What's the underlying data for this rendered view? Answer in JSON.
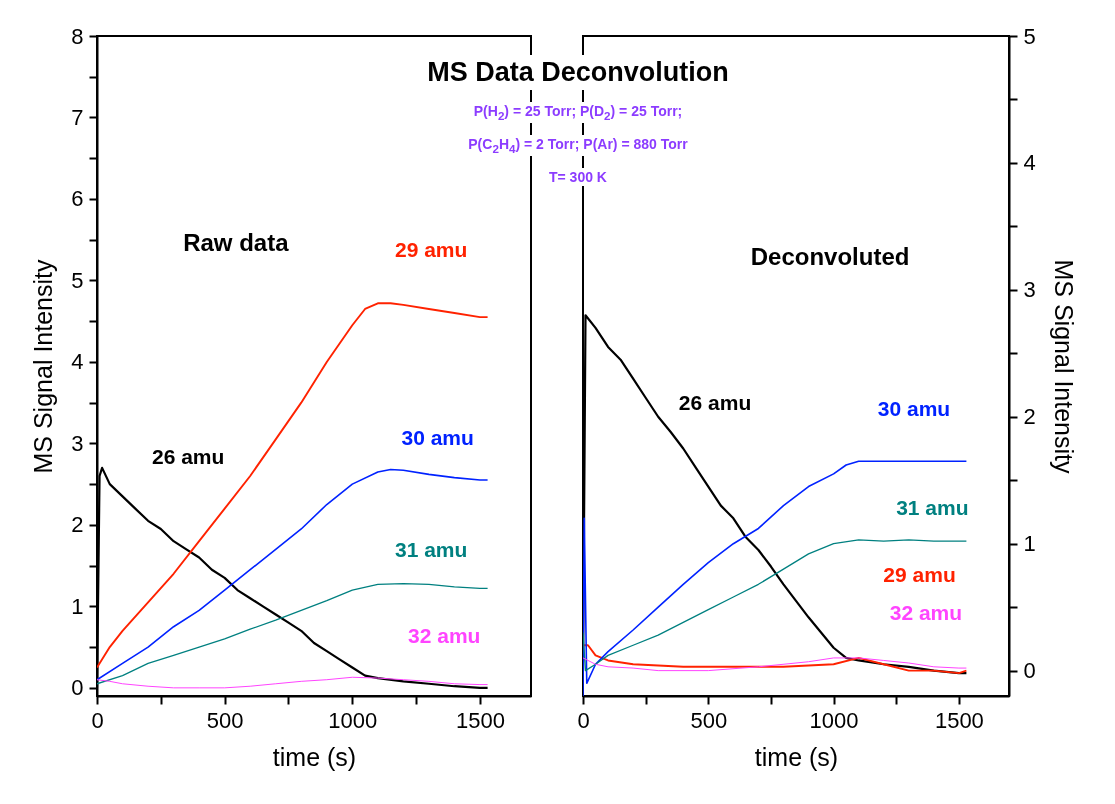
{
  "chart_data": [
    {
      "type": "line",
      "title": "MS Data Deconvolution",
      "xlabel": "time (s)",
      "ylabel": "MS Signal Intensity",
      "annotations": [
        "P(H$_{2}$) =  25 Torr; P(D$_{2}$) =  25 Torr;",
        "P(C$_{2}$H$_{4}$) =  2 Torr; P(Ar) =  880 Torr",
        "T= 300 K",
        "Raw data"
      ],
      "xlim": [
        0,
        1700
      ],
      "ylim": [
        -0.1,
        8
      ],
      "xticks": [
        0,
        {
          "value": 250,
          "label": null
        },
        500,
        {
          "value": 750,
          "label": null
        },
        1000,
        {
          "value": 1250,
          "label": null
        },
        1500
      ],
      "yticks": [
        0,
        {
          "value": 0.5,
          "label": null
        },
        1,
        {
          "value": 1.5,
          "label": null
        },
        2,
        {
          "value": 2.5,
          "label": null
        },
        3,
        {
          "value": 3.5,
          "label": null
        },
        4,
        {
          "value": 4.5,
          "label": null
        },
        5,
        {
          "value": 5.5,
          "label": null
        },
        6,
        {
          "value": 6.5,
          "label": null
        },
        7,
        {
          "value": 7.5,
          "label": null
        },
        8
      ],
      "series": [
        {
          "name": "26 amu",
          "color": "#000000",
          "x": [
            0,
            10,
            20,
            50,
            100,
            150,
            200,
            250,
            300,
            350,
            400,
            450,
            500,
            550,
            600,
            650,
            700,
            750,
            800,
            850,
            900,
            950,
            1000,
            1050,
            1100,
            1200,
            1300,
            1400,
            1500,
            1530
          ],
          "values": [
            0,
            2.6,
            2.7,
            2.5,
            2.35,
            2.2,
            2.05,
            1.95,
            1.8,
            1.7,
            1.6,
            1.45,
            1.35,
            1.2,
            1.1,
            1.0,
            0.9,
            0.8,
            0.7,
            0.55,
            0.45,
            0.35,
            0.25,
            0.15,
            0.12,
            0.08,
            0.05,
            0.02,
            0.0,
            0.0
          ]
        },
        {
          "name": "29 amu",
          "color": "#ff2200",
          "x": [
            0,
            50,
            100,
            200,
            300,
            400,
            500,
            600,
            700,
            800,
            900,
            1000,
            1050,
            1100,
            1150,
            1200,
            1300,
            1400,
            1500,
            1530
          ],
          "values": [
            0.25,
            0.5,
            0.7,
            1.05,
            1.4,
            1.8,
            2.2,
            2.6,
            3.05,
            3.5,
            4.0,
            4.45,
            4.65,
            4.72,
            4.72,
            4.7,
            4.65,
            4.6,
            4.55,
            4.55
          ]
        },
        {
          "name": "30 amu",
          "color": "#0022ff",
          "x": [
            0,
            100,
            200,
            300,
            400,
            500,
            600,
            700,
            800,
            900,
            1000,
            1100,
            1150,
            1200,
            1300,
            1400,
            1500,
            1530
          ],
          "values": [
            0.1,
            0.3,
            0.5,
            0.75,
            0.95,
            1.2,
            1.45,
            1.7,
            1.95,
            2.25,
            2.5,
            2.65,
            2.68,
            2.67,
            2.62,
            2.58,
            2.55,
            2.55
          ]
        },
        {
          "name": "31 amu",
          "color": "#008080",
          "x": [
            0,
            100,
            200,
            300,
            400,
            500,
            600,
            700,
            800,
            900,
            1000,
            1100,
            1200,
            1300,
            1400,
            1500,
            1530
          ],
          "values": [
            0.05,
            0.15,
            0.3,
            0.4,
            0.5,
            0.6,
            0.72,
            0.83,
            0.95,
            1.07,
            1.2,
            1.27,
            1.28,
            1.27,
            1.24,
            1.22,
            1.22
          ]
        },
        {
          "name": "32 amu",
          "color": "#ff44ff",
          "x": [
            0,
            50,
            100,
            200,
            300,
            400,
            500,
            600,
            700,
            800,
            900,
            1000,
            1100,
            1200,
            1300,
            1400,
            1500,
            1530
          ],
          "values": [
            0.1,
            0.08,
            0.05,
            0.02,
            0.0,
            0.0,
            0.0,
            0.02,
            0.05,
            0.08,
            0.1,
            0.13,
            0.12,
            0.1,
            0.08,
            0.05,
            0.04,
            0.04
          ]
        }
      ]
    },
    {
      "type": "line",
      "xlabel": "time (s)",
      "ylabel": "MS Signal Intensity",
      "annotations": [
        "Deconvoluted"
      ],
      "xlim": [
        0,
        1700
      ],
      "ylim": [
        -0.2,
        5
      ],
      "xticks": [
        0,
        {
          "value": 250,
          "label": null
        },
        500,
        {
          "value": 750,
          "label": null
        },
        1000,
        {
          "value": 1250,
          "label": null
        },
        1500
      ],
      "yticks": [
        0,
        {
          "value": 0.5,
          "label": null
        },
        1,
        {
          "value": 1.5,
          "label": null
        },
        2,
        {
          "value": 2.5,
          "label": null
        },
        3,
        {
          "value": 3.5,
          "label": null
        },
        4,
        {
          "value": 4.5,
          "label": null
        },
        5
      ],
      "series": [
        {
          "name": "26 amu",
          "color": "#000000",
          "x": [
            0,
            10,
            50,
            100,
            150,
            200,
            250,
            300,
            350,
            400,
            450,
            500,
            550,
            600,
            650,
            700,
            750,
            800,
            850,
            900,
            950,
            1000,
            1050,
            1100,
            1200,
            1300,
            1400,
            1500,
            1530
          ],
          "values": [
            0,
            2.8,
            2.7,
            2.55,
            2.45,
            2.3,
            2.15,
            2.0,
            1.88,
            1.75,
            1.6,
            1.45,
            1.3,
            1.2,
            1.05,
            0.95,
            0.82,
            0.68,
            0.55,
            0.42,
            0.3,
            0.18,
            0.1,
            0.08,
            0.05,
            0.03,
            0.0,
            -0.02,
            -0.02
          ]
        },
        {
          "name": "29 amu",
          "color": "#ff2200",
          "x": [
            0,
            20,
            50,
            100,
            200,
            400,
            600,
            800,
            1000,
            1100,
            1200,
            1300,
            1400,
            1500,
            1530
          ],
          "values": [
            0.2,
            0.2,
            0.12,
            0.08,
            0.05,
            0.03,
            0.03,
            0.03,
            0.05,
            0.1,
            0.05,
            0.0,
            0.0,
            -0.02,
            0.0
          ]
        },
        {
          "name": "30 amu",
          "color": "#0022ff",
          "x": [
            0,
            5,
            15,
            50,
            100,
            200,
            300,
            400,
            500,
            600,
            700,
            800,
            900,
            1000,
            1050,
            1100,
            1200,
            1300,
            1400,
            1500,
            1530
          ],
          "values": [
            -0.2,
            1.2,
            -0.1,
            0.05,
            0.15,
            0.32,
            0.5,
            0.68,
            0.85,
            1.0,
            1.12,
            1.3,
            1.45,
            1.55,
            1.62,
            1.65,
            1.65,
            1.65,
            1.65,
            1.65,
            1.65
          ]
        },
        {
          "name": "31 amu",
          "color": "#008080",
          "x": [
            0,
            10,
            50,
            100,
            200,
            300,
            400,
            500,
            600,
            700,
            800,
            900,
            1000,
            1100,
            1200,
            1300,
            1400,
            1500,
            1530
          ],
          "values": [
            0.3,
            0.0,
            0.05,
            0.12,
            0.2,
            0.28,
            0.38,
            0.48,
            0.58,
            0.68,
            0.8,
            0.92,
            1.0,
            1.03,
            1.02,
            1.03,
            1.02,
            1.02,
            1.02
          ]
        },
        {
          "name": "32 amu",
          "color": "#ff44ff",
          "x": [
            0,
            20,
            50,
            100,
            200,
            300,
            500,
            700,
            900,
            1000,
            1100,
            1200,
            1300,
            1400,
            1500,
            1530
          ],
          "values": [
            0.1,
            0.08,
            0.05,
            0.03,
            0.02,
            0.0,
            0.0,
            0.03,
            0.07,
            0.1,
            0.1,
            0.08,
            0.06,
            0.03,
            0.02,
            0.02
          ]
        }
      ]
    }
  ]
}
